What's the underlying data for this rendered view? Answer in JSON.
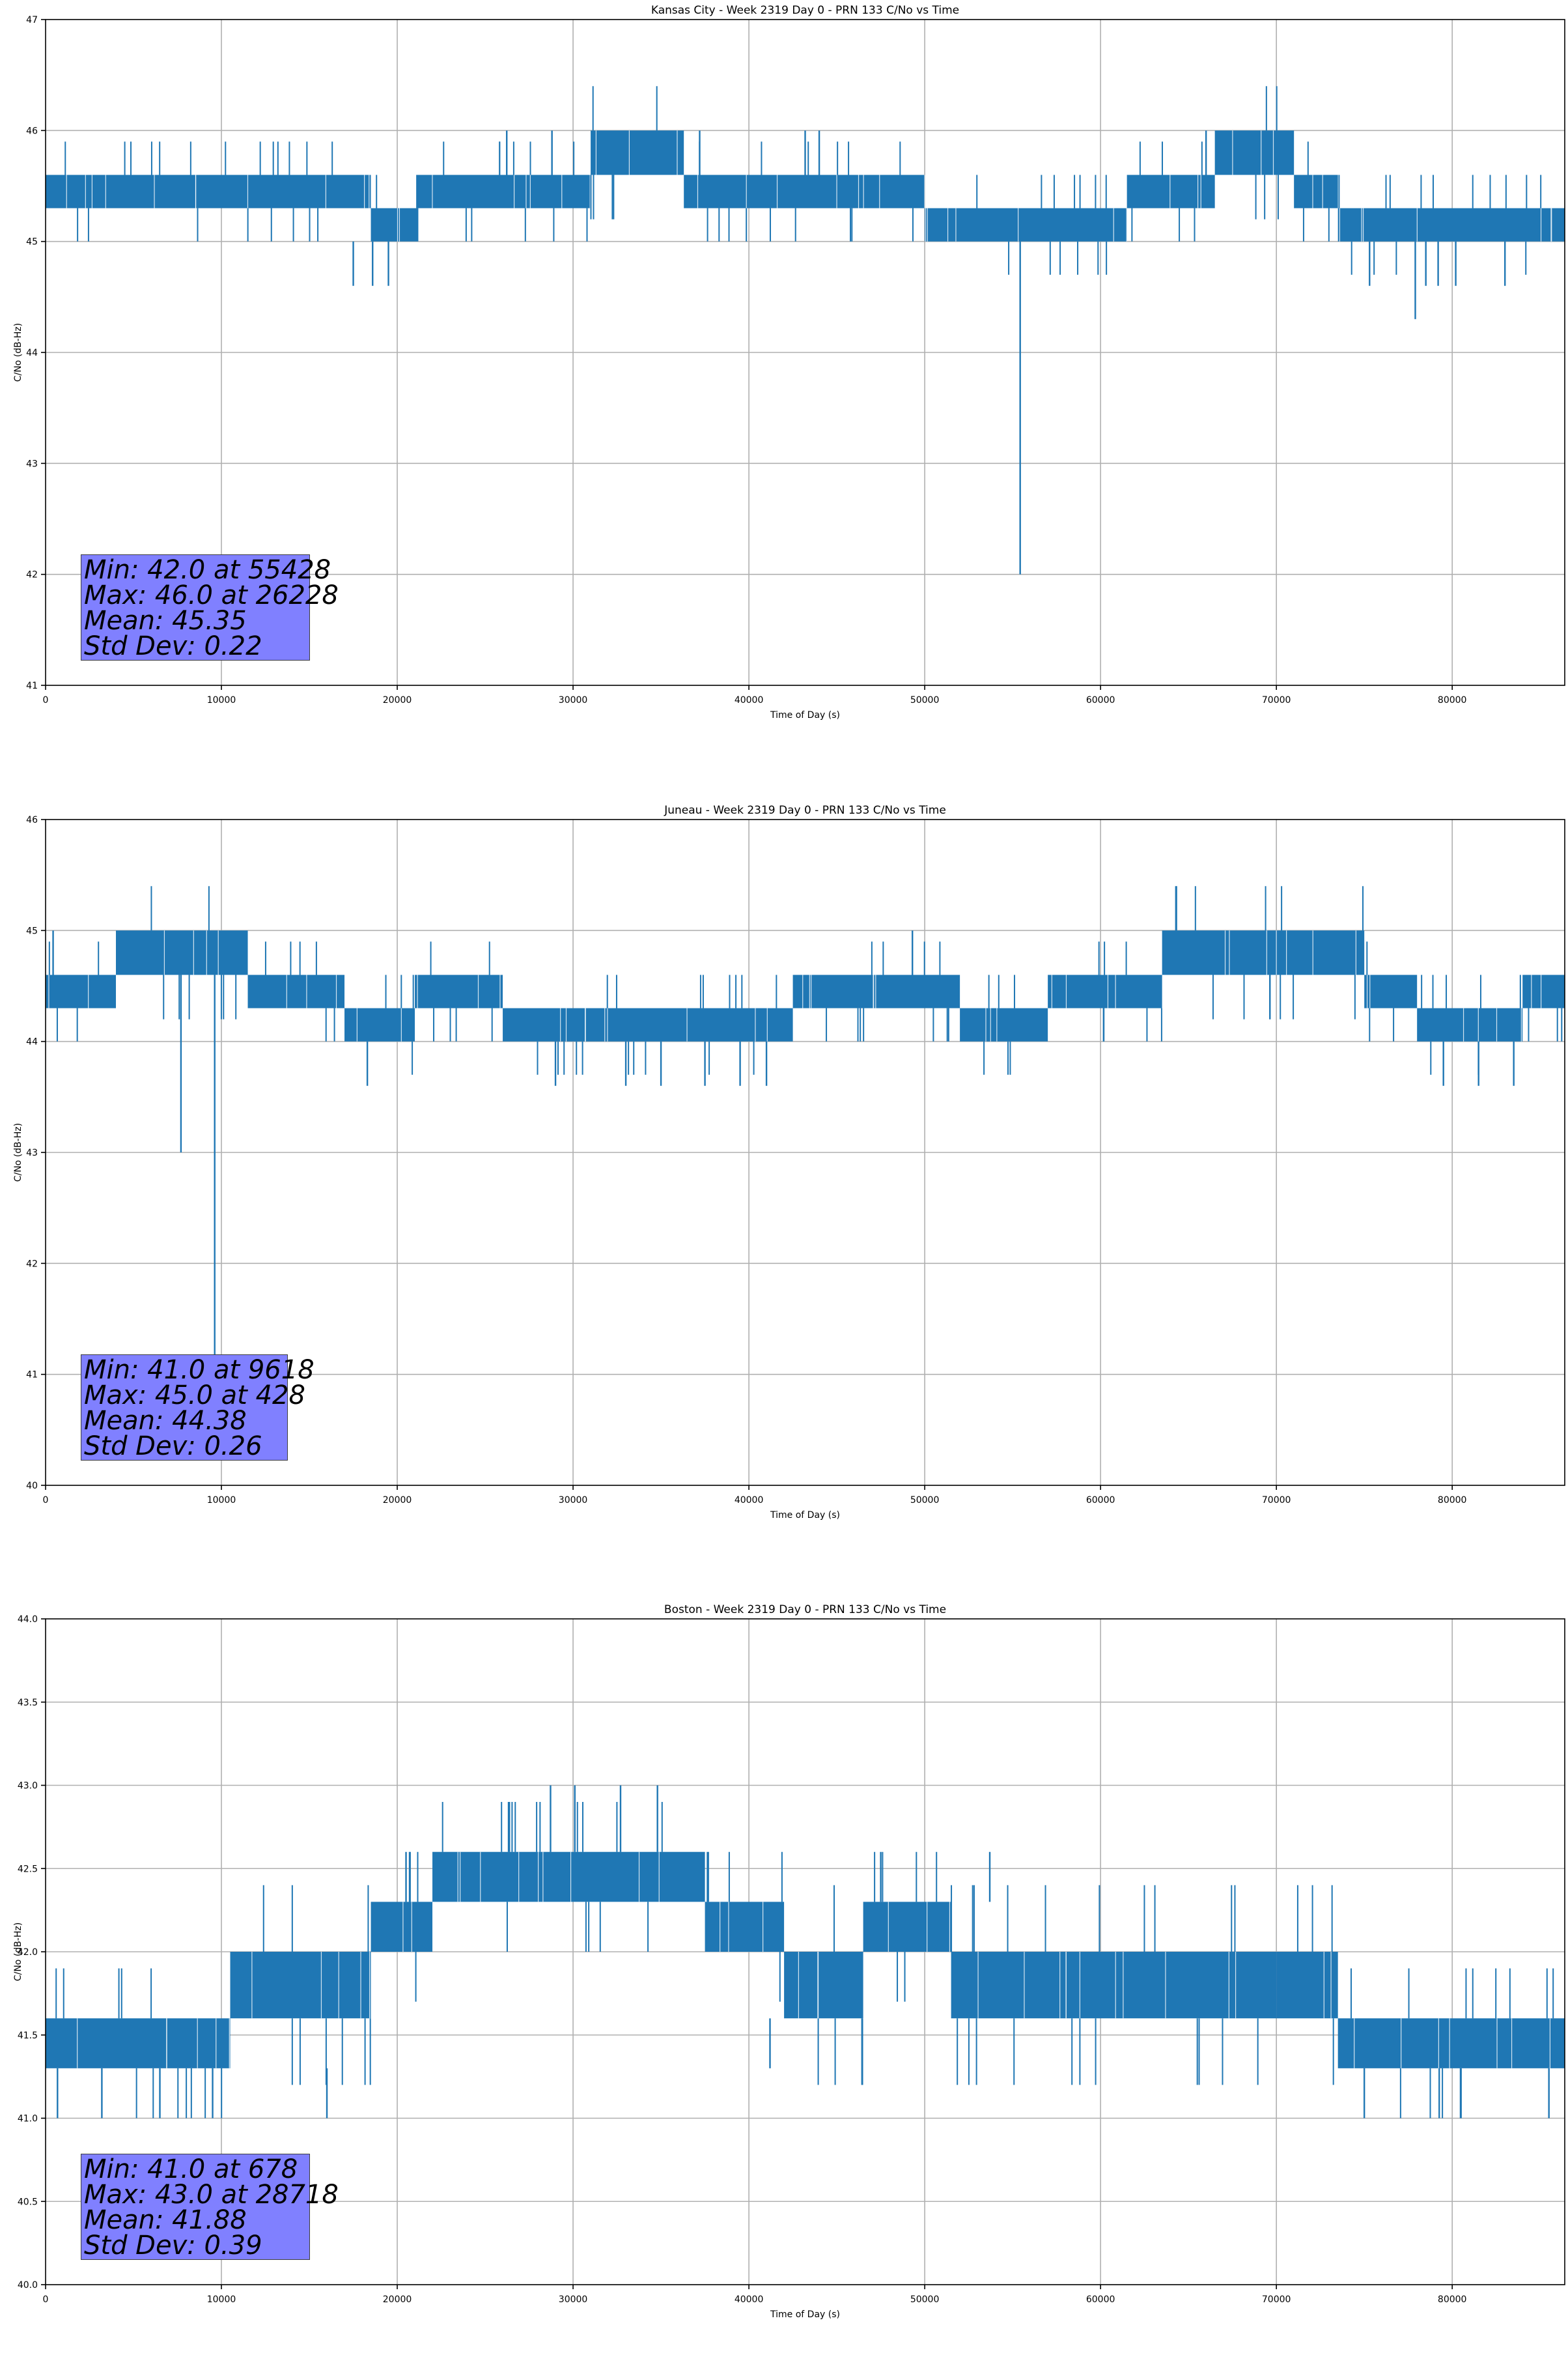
{
  "series_color": "#1f77b4",
  "chart_data": [
    {
      "type": "line",
      "title": "Kansas City - Week 2319 Day 0 - PRN 133 C/No vs Time",
      "xlabel": "Time of Day (s)",
      "ylabel": "C/No (dB-Hz)",
      "xlim": [
        0,
        86400
      ],
      "ylim": [
        41,
        47
      ],
      "x_ticks": [
        0,
        10000,
        20000,
        30000,
        40000,
        50000,
        60000,
        70000,
        80000
      ],
      "y_ticks": [
        41,
        42,
        43,
        44,
        45,
        46,
        47
      ],
      "y_tick_labels": [
        "41",
        "42",
        "43",
        "44",
        "45",
        "46",
        "47"
      ],
      "grid": true,
      "band_segments": [
        {
          "x0": 0,
          "x1": 18500,
          "low": 45.3,
          "high": 45.6
        },
        {
          "x0": 18500,
          "x1": 21200,
          "low": 45.0,
          "high": 45.3
        },
        {
          "x0": 21200,
          "x1": 31000,
          "low": 45.3,
          "high": 45.6
        },
        {
          "x0": 31000,
          "x1": 36300,
          "low": 45.6,
          "high": 46.0
        },
        {
          "x0": 36300,
          "x1": 50000,
          "low": 45.3,
          "high": 45.6
        },
        {
          "x0": 50000,
          "x1": 61500,
          "low": 45.0,
          "high": 45.3
        },
        {
          "x0": 61500,
          "x1": 66500,
          "low": 45.3,
          "high": 45.6
        },
        {
          "x0": 66500,
          "x1": 71000,
          "low": 45.6,
          "high": 46.0
        },
        {
          "x0": 71000,
          "x1": 73500,
          "low": 45.3,
          "high": 45.6
        },
        {
          "x0": 73500,
          "x1": 86400,
          "low": 45.0,
          "high": 45.3
        }
      ],
      "spikes": [
        {
          "x": 26228,
          "from": 45.6,
          "to": 46.0
        },
        {
          "x": 28800,
          "from": 45.6,
          "to": 46.0
        },
        {
          "x": 37200,
          "from": 45.6,
          "to": 46.0
        },
        {
          "x": 43200,
          "from": 45.6,
          "to": 46.0
        },
        {
          "x": 44000,
          "from": 45.6,
          "to": 46.0
        },
        {
          "x": 66000,
          "from": 45.6,
          "to": 46.0
        },
        {
          "x": 17500,
          "from": 45.0,
          "to": 44.6
        },
        {
          "x": 18600,
          "from": 45.0,
          "to": 44.6
        },
        {
          "x": 19500,
          "from": 45.0,
          "to": 44.6
        },
        {
          "x": 55428,
          "from": 45.0,
          "to": 42.0
        },
        {
          "x": 75300,
          "from": 45.0,
          "to": 44.6
        },
        {
          "x": 77900,
          "from": 45.0,
          "to": 44.3
        },
        {
          "x": 78500,
          "from": 45.0,
          "to": 44.6
        },
        {
          "x": 79200,
          "from": 45.0,
          "to": 44.6
        },
        {
          "x": 80200,
          "from": 45.0,
          "to": 44.6
        },
        {
          "x": 83000,
          "from": 45.0,
          "to": 44.6
        }
      ],
      "stats": [
        "Min: 42.0 at 55428",
        "Max: 46.0 at 26228",
        "Mean: 45.35",
        "Std Dev: 0.22"
      ]
    },
    {
      "type": "line",
      "title": "Juneau - Week 2319 Day 0 - PRN 133 C/No vs Time",
      "xlabel": "Time of Day (s)",
      "ylabel": "C/No (dB-Hz)",
      "xlim": [
        0,
        86400
      ],
      "ylim": [
        40,
        46
      ],
      "x_ticks": [
        0,
        10000,
        20000,
        30000,
        40000,
        50000,
        60000,
        70000,
        80000
      ],
      "y_ticks": [
        40,
        41,
        42,
        43,
        44,
        45,
        46
      ],
      "y_tick_labels": [
        "40",
        "41",
        "42",
        "43",
        "44",
        "45",
        "46"
      ],
      "grid": true,
      "band_segments": [
        {
          "x0": 0,
          "x1": 4000,
          "low": 44.3,
          "high": 44.6
        },
        {
          "x0": 4000,
          "x1": 11500,
          "low": 44.6,
          "high": 45.0
        },
        {
          "x0": 11500,
          "x1": 17000,
          "low": 44.3,
          "high": 44.6
        },
        {
          "x0": 17000,
          "x1": 21000,
          "low": 44.0,
          "high": 44.3
        },
        {
          "x0": 21000,
          "x1": 26000,
          "low": 44.3,
          "high": 44.6
        },
        {
          "x0": 26000,
          "x1": 42500,
          "low": 44.0,
          "high": 44.3
        },
        {
          "x0": 42500,
          "x1": 52000,
          "low": 44.3,
          "high": 44.6
        },
        {
          "x0": 52000,
          "x1": 57000,
          "low": 44.0,
          "high": 44.3
        },
        {
          "x0": 57000,
          "x1": 63500,
          "low": 44.3,
          "high": 44.6
        },
        {
          "x0": 63500,
          "x1": 75000,
          "low": 44.6,
          "high": 45.0
        },
        {
          "x0": 75000,
          "x1": 78000,
          "low": 44.3,
          "high": 44.6
        },
        {
          "x0": 78000,
          "x1": 84000,
          "low": 44.0,
          "high": 44.3
        },
        {
          "x0": 84000,
          "x1": 86400,
          "low": 44.3,
          "high": 44.6
        }
      ],
      "spikes": [
        {
          "x": 7700,
          "from": 44.6,
          "to": 43.0
        },
        {
          "x": 9618,
          "from": 44.6,
          "to": 41.0
        },
        {
          "x": 428,
          "from": 44.6,
          "to": 45.0
        },
        {
          "x": 49300,
          "from": 44.6,
          "to": 45.0
        },
        {
          "x": 18300,
          "from": 44.0,
          "to": 43.6
        },
        {
          "x": 29000,
          "from": 44.0,
          "to": 43.6
        },
        {
          "x": 33000,
          "from": 44.0,
          "to": 43.6
        },
        {
          "x": 35000,
          "from": 44.0,
          "to": 43.6
        },
        {
          "x": 37500,
          "from": 44.0,
          "to": 43.6
        },
        {
          "x": 39500,
          "from": 44.0,
          "to": 43.6
        },
        {
          "x": 41000,
          "from": 44.0,
          "to": 43.6
        },
        {
          "x": 79500,
          "from": 44.0,
          "to": 43.6
        },
        {
          "x": 81500,
          "from": 44.0,
          "to": 43.6
        },
        {
          "x": 83500,
          "from": 44.0,
          "to": 43.6
        }
      ],
      "stats": [
        "Min: 41.0 at 9618",
        "Max: 45.0 at 428",
        "Mean: 44.38",
        "Std Dev: 0.26"
      ]
    },
    {
      "type": "line",
      "title": "Boston - Week 2319 Day 0 - PRN 133 C/No vs Time",
      "xlabel": "Time of Day (s)",
      "ylabel": "C/No (dB-Hz)",
      "xlim": [
        0,
        86400
      ],
      "ylim": [
        40.0,
        44.0
      ],
      "x_ticks": [
        0,
        10000,
        20000,
        30000,
        40000,
        50000,
        60000,
        70000,
        80000
      ],
      "y_ticks": [
        40.0,
        40.5,
        41.0,
        41.5,
        42.0,
        42.5,
        43.0,
        43.5,
        44.0
      ],
      "y_tick_labels": [
        "40.0",
        "40.5",
        "41.0",
        "41.5",
        "42.0",
        "42.5",
        "43.0",
        "43.5",
        "44.0"
      ],
      "grid": true,
      "band_segments": [
        {
          "x0": 0,
          "x1": 10500,
          "low": 41.3,
          "high": 41.6
        },
        {
          "x0": 10500,
          "x1": 18500,
          "low": 41.6,
          "high": 42.0
        },
        {
          "x0": 18500,
          "x1": 22000,
          "low": 42.0,
          "high": 42.3
        },
        {
          "x0": 22000,
          "x1": 37500,
          "low": 42.3,
          "high": 42.6
        },
        {
          "x0": 37500,
          "x1": 42000,
          "low": 42.0,
          "high": 42.3
        },
        {
          "x0": 42000,
          "x1": 46500,
          "low": 41.6,
          "high": 42.0
        },
        {
          "x0": 46500,
          "x1": 51500,
          "low": 42.0,
          "high": 42.3
        },
        {
          "x0": 51500,
          "x1": 70000,
          "low": 41.6,
          "high": 42.0
        },
        {
          "x0": 70000,
          "x1": 73500,
          "low": 41.6,
          "high": 42.0
        },
        {
          "x0": 73500,
          "x1": 86400,
          "low": 41.3,
          "high": 41.6
        }
      ],
      "spikes": [
        {
          "x": 28718,
          "from": 42.6,
          "to": 43.0
        },
        {
          "x": 30100,
          "from": 42.6,
          "to": 43.0
        },
        {
          "x": 32700,
          "from": 42.6,
          "to": 43.0
        },
        {
          "x": 34800,
          "from": 42.6,
          "to": 43.0
        },
        {
          "x": 20500,
          "from": 42.3,
          "to": 42.6
        },
        {
          "x": 47500,
          "from": 42.3,
          "to": 42.6
        },
        {
          "x": 53700,
          "from": 42.3,
          "to": 42.6
        },
        {
          "x": 678,
          "from": 41.3,
          "to": 41.0
        },
        {
          "x": 3200,
          "from": 41.3,
          "to": 41.0
        },
        {
          "x": 6500,
          "from": 41.3,
          "to": 41.0
        },
        {
          "x": 9500,
          "from": 41.3,
          "to": 41.0
        },
        {
          "x": 16000,
          "from": 41.3,
          "to": 41.0
        },
        {
          "x": 41200,
          "from": 41.6,
          "to": 41.3
        },
        {
          "x": 75000,
          "from": 41.3,
          "to": 41.0
        },
        {
          "x": 80500,
          "from": 41.3,
          "to": 41.0
        },
        {
          "x": 85500,
          "from": 41.3,
          "to": 41.0
        }
      ],
      "stats": [
        "Min: 41.0 at 678",
        "Max: 43.0 at 28718",
        "Mean: 41.88",
        "Std Dev: 0.39"
      ]
    }
  ]
}
